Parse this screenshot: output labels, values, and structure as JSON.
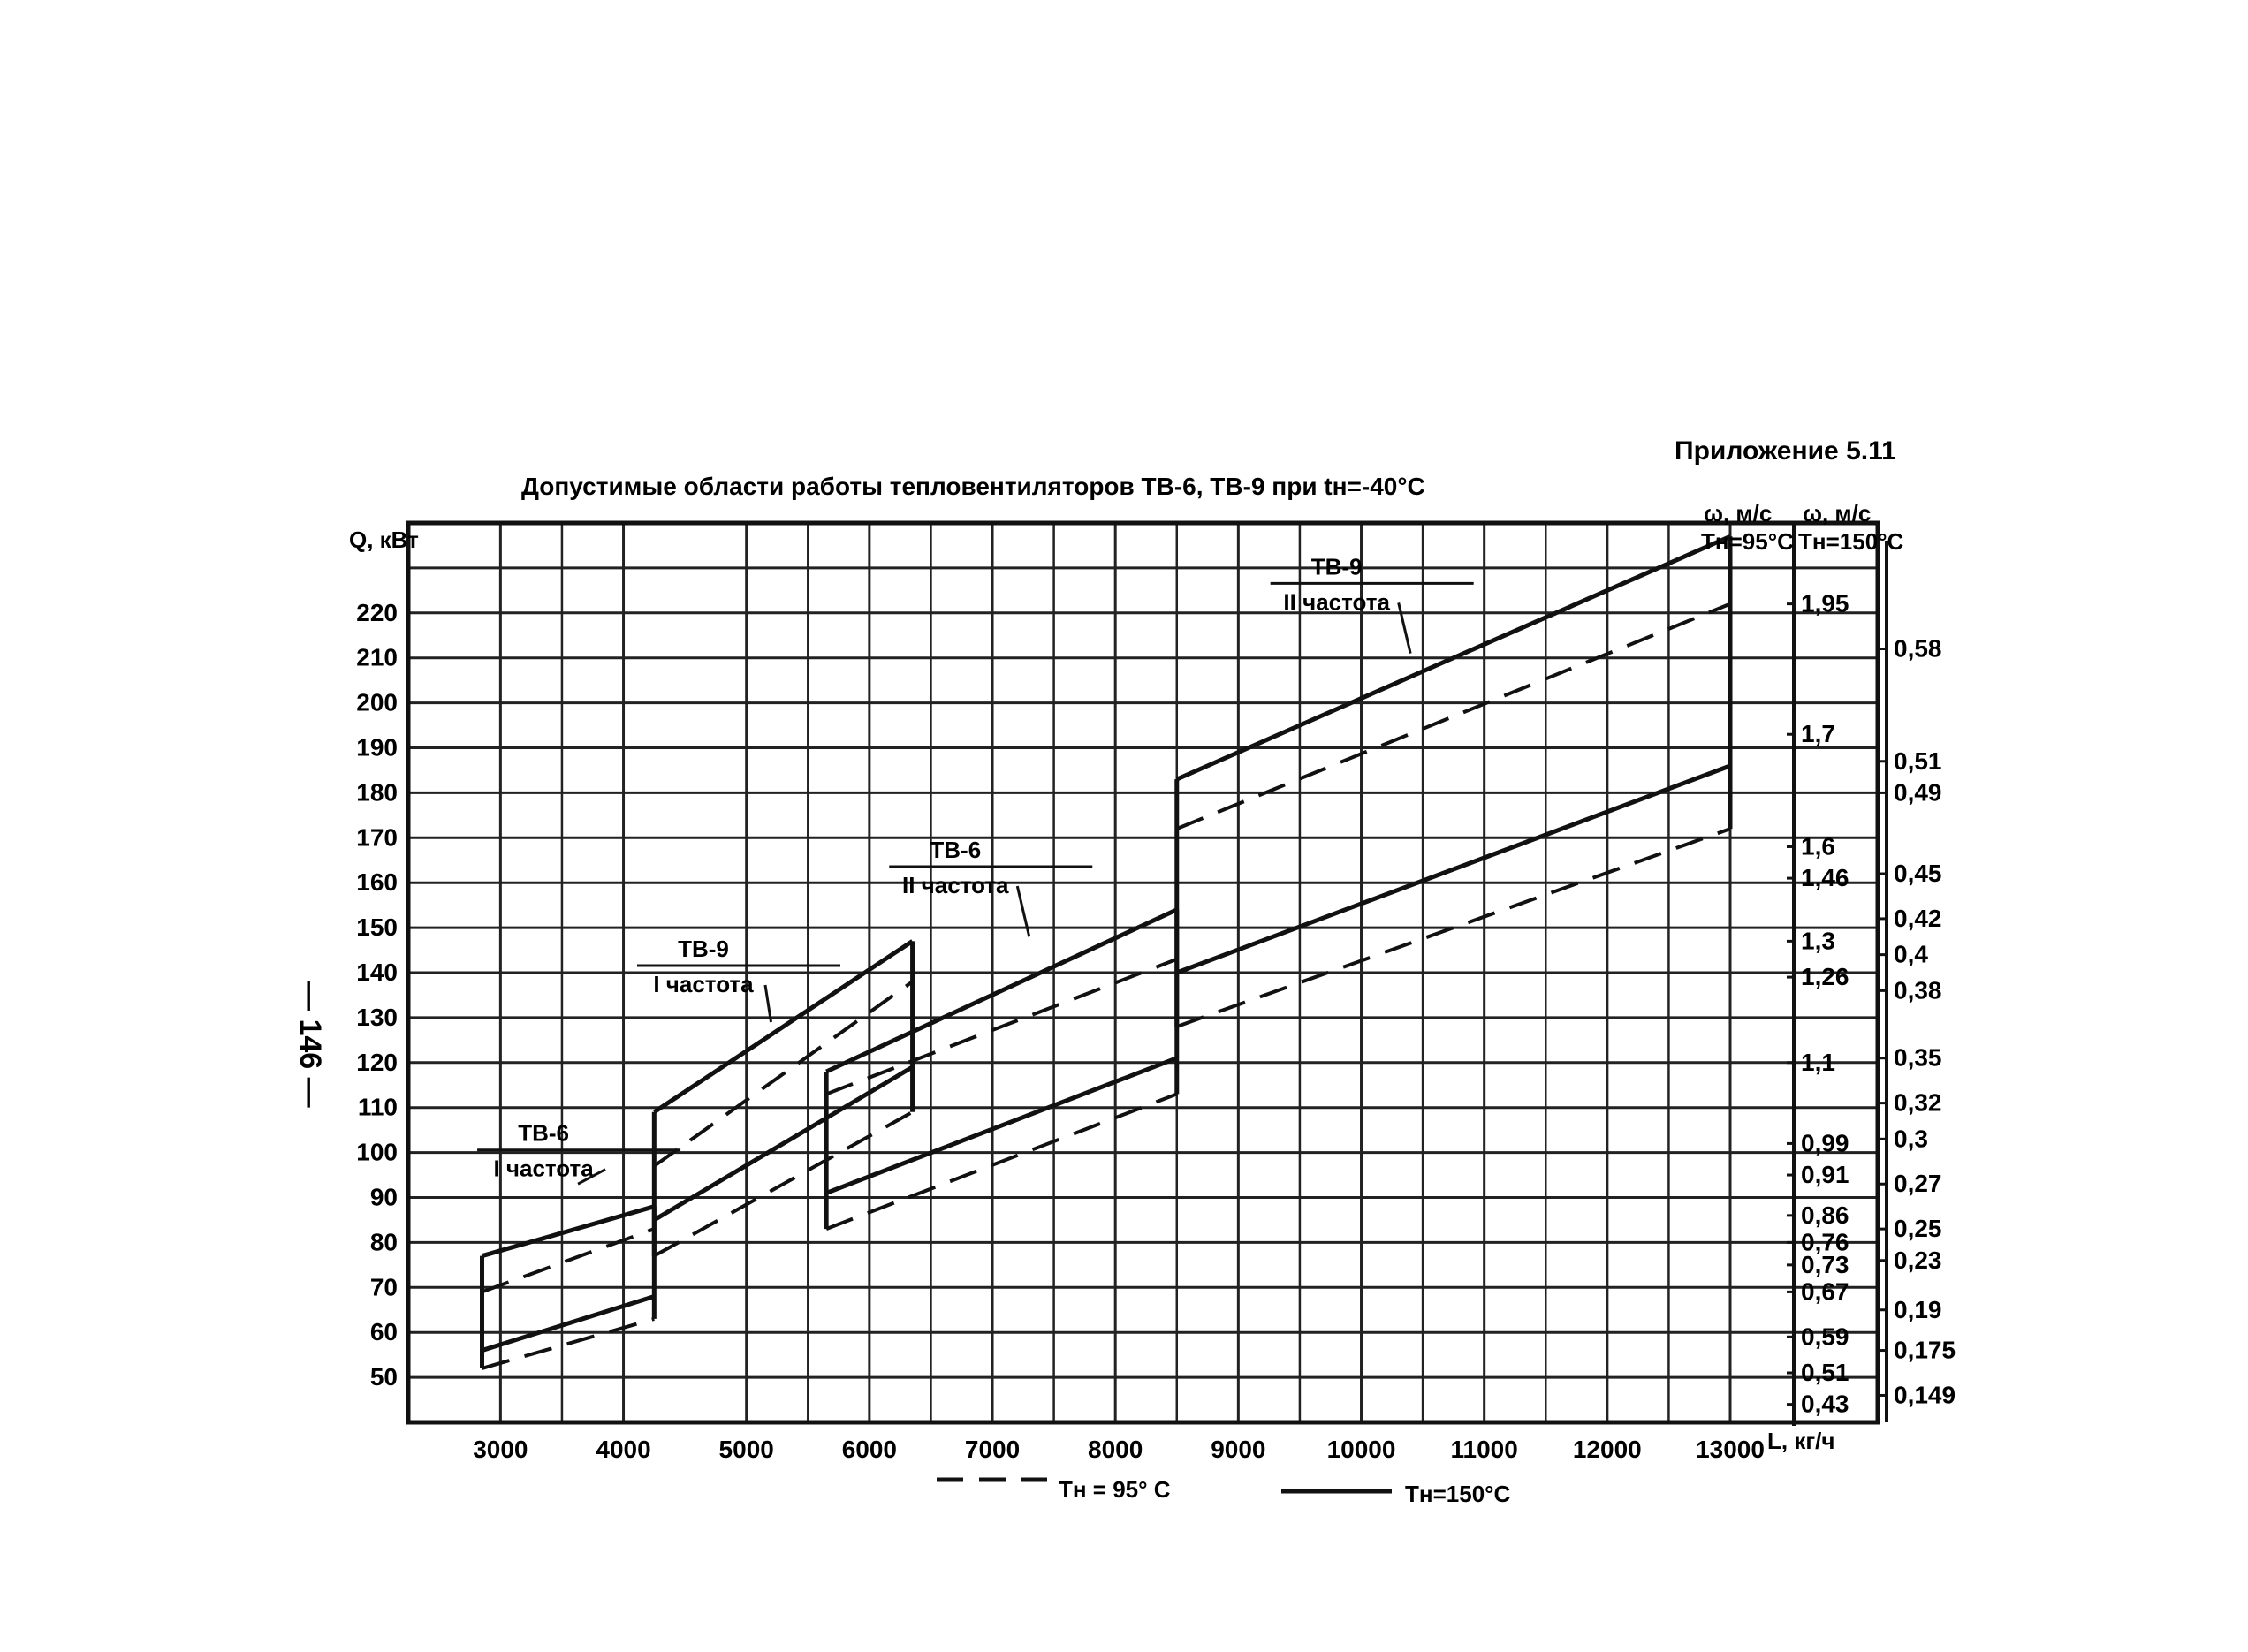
{
  "page": {
    "appendix": "Приложение 5.11",
    "side_number": "— 146 —"
  },
  "chart_data": {
    "type": "line",
    "title": "Допустимые области работы тепловентиляторов ТВ-6, ТВ-9  при tн=-40°С",
    "ylabel": "Q, кВт",
    "xlabel": "L, кг/ч",
    "xlim": [
      2250,
      14200
    ],
    "ylim": [
      40,
      240
    ],
    "x_ticks": [
      3000,
      4000,
      5000,
      6000,
      7000,
      8000,
      9000,
      10000,
      11000,
      12000,
      13000
    ],
    "y_ticks": [
      50,
      60,
      70,
      80,
      90,
      100,
      110,
      120,
      130,
      140,
      150,
      160,
      170,
      180,
      190,
      200,
      210,
      220
    ],
    "right_axis_1": {
      "label": "ω, м/с",
      "sublabel": "Тн=95°С",
      "ticks": [
        {
          "text": "1,95",
          "q": 222
        },
        {
          "text": "1,7",
          "q": 193
        },
        {
          "text": "1,6",
          "q": 168
        },
        {
          "text": "1,46",
          "q": 161
        },
        {
          "text": "1,3",
          "q": 147
        },
        {
          "text": "1,26",
          "q": 139
        },
        {
          "text": "1,1",
          "q": 120
        },
        {
          "text": "0,99",
          "q": 102
        },
        {
          "text": "0,91",
          "q": 95
        },
        {
          "text": "0,86",
          "q": 86
        },
        {
          "text": "0,76",
          "q": 80
        },
        {
          "text": "0,73",
          "q": 75
        },
        {
          "text": "0,67",
          "q": 69
        },
        {
          "text": "0,59",
          "q": 59
        },
        {
          "text": "0,51",
          "q": 51
        },
        {
          "text": "0,43",
          "q": 44
        }
      ]
    },
    "right_axis_2": {
      "label": "ω, м/с",
      "sublabel": "Тн=150°С",
      "ticks": [
        {
          "text": "0,58",
          "q": 212
        },
        {
          "text": "0,51",
          "q": 187
        },
        {
          "text": "0,49",
          "q": 180
        },
        {
          "text": "0,45",
          "q": 162
        },
        {
          "text": "0,42",
          "q": 152
        },
        {
          "text": "0,4",
          "q": 144
        },
        {
          "text": "0,38",
          "q": 136
        },
        {
          "text": "0,35",
          "q": 121
        },
        {
          "text": "0,32",
          "q": 111
        },
        {
          "text": "0,3",
          "q": 103
        },
        {
          "text": "0,27",
          "q": 93
        },
        {
          "text": "0,25",
          "q": 83
        },
        {
          "text": "0,23",
          "q": 76
        },
        {
          "text": "0,19",
          "q": 65
        },
        {
          "text": "0,175",
          "q": 56
        },
        {
          "text": "0,149",
          "q": 46
        }
      ]
    },
    "legend": [
      {
        "style": "dashed",
        "label": "Тн = 95° С"
      },
      {
        "style": "solid",
        "label": "Тн=150°С"
      }
    ],
    "regions": [
      {
        "name_line1": "ТВ-6",
        "name_line2": "I частота",
        "solid_upper": [
          [
            2850,
            77
          ],
          [
            4250,
            88
          ]
        ],
        "solid_lower": [
          [
            2850,
            56
          ],
          [
            4250,
            68
          ]
        ],
        "dashed_upper": [
          [
            2850,
            69
          ],
          [
            4250,
            83
          ]
        ],
        "dashed_lower": [
          [
            2850,
            52
          ],
          [
            4250,
            63
          ]
        ]
      },
      {
        "name_line1": "ТВ-9",
        "name_line2": "I частота",
        "solid_upper": [
          [
            4250,
            109
          ],
          [
            6350,
            147
          ]
        ],
        "solid_lower": [
          [
            4250,
            85
          ],
          [
            6350,
            119
          ]
        ],
        "dashed_upper": [
          [
            4250,
            97
          ],
          [
            6350,
            138
          ]
        ],
        "dashed_lower": [
          [
            4250,
            77
          ],
          [
            6350,
            109
          ]
        ]
      },
      {
        "name_line1": "ТВ-6",
        "name_line2": "II частота",
        "solid_upper": [
          [
            5650,
            118
          ],
          [
            8500,
            154
          ]
        ],
        "solid_lower": [
          [
            5650,
            91
          ],
          [
            8500,
            121
          ]
        ],
        "dashed_upper": [
          [
            5650,
            113
          ],
          [
            8500,
            143
          ]
        ],
        "dashed_lower": [
          [
            5650,
            83
          ],
          [
            8500,
            113
          ]
        ]
      },
      {
        "name_line1": "ТВ-9",
        "name_line2": "II частота",
        "solid_upper": [
          [
            8500,
            183
          ],
          [
            13000,
            237
          ]
        ],
        "solid_lower": [
          [
            8500,
            140
          ],
          [
            13000,
            186
          ]
        ],
        "dashed_upper": [
          [
            8500,
            172
          ],
          [
            13000,
            222
          ]
        ],
        "dashed_lower": [
          [
            8500,
            128
          ],
          [
            13000,
            172
          ]
        ]
      }
    ]
  }
}
